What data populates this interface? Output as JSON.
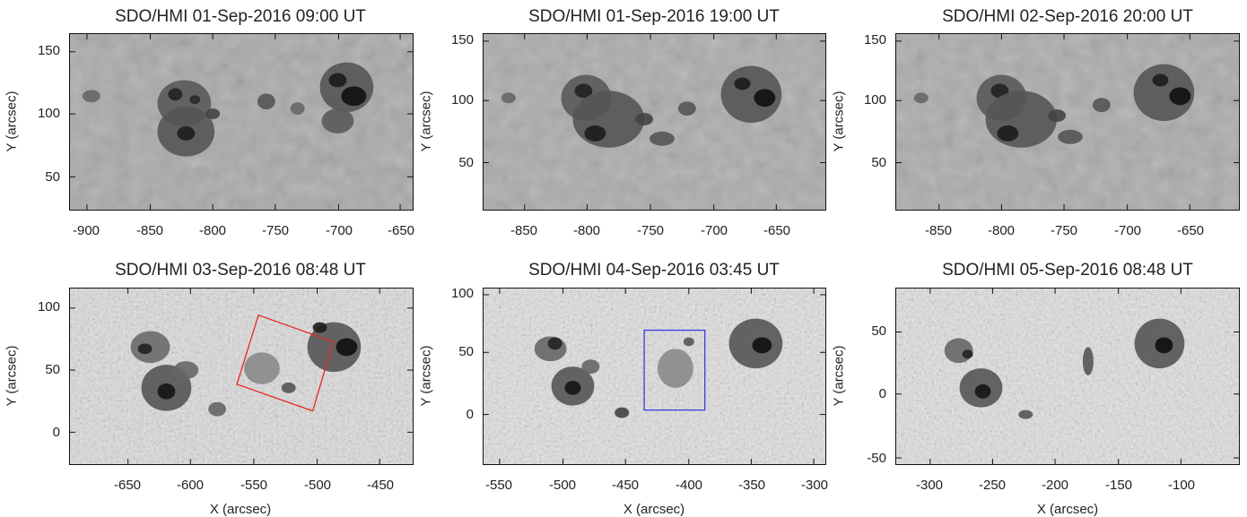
{
  "panels": [
    {
      "title": "SDO/HMI 01-Sep-2016 09:00 UT",
      "ylabel": "Y (arcsec)",
      "xlabel": "",
      "xticks": [
        "-900",
        "-850",
        "-800",
        "-750",
        "-700",
        "-650"
      ],
      "yticks": [
        "150",
        "100",
        "50"
      ],
      "overlay": null
    },
    {
      "title": "SDO/HMI 01-Sep-2016 19:00 UT",
      "ylabel": "Y (arcsec)",
      "xlabel": "",
      "xticks": [
        "-850",
        "-800",
        "-750",
        "-700",
        "-650"
      ],
      "yticks": [
        "150",
        "100",
        "50"
      ],
      "overlay": null
    },
    {
      "title": "SDO/HMI 02-Sep-2016 20:00 UT",
      "ylabel": "Y (arcsec)",
      "xlabel": "",
      "xticks": [
        "-850",
        "-800",
        "-750",
        "-700",
        "-650"
      ],
      "yticks": [
        "150",
        "100",
        "50"
      ],
      "overlay": null
    },
    {
      "title": "SDO/HMI 03-Sep-2016 08:48 UT",
      "ylabel": "Y (arcsec)",
      "xlabel": "X (arcsec)",
      "xticks": [
        "-650",
        "-600",
        "-550",
        "-500",
        "-450"
      ],
      "yticks": [
        "100",
        "50",
        "0"
      ],
      "overlay": {
        "shape": "rotated rectangle",
        "color": "#e8281e"
      }
    },
    {
      "title": "SDO/HMI 04-Sep-2016 03:45 UT",
      "ylabel": "Y (arcsec)",
      "xlabel": "X (arcsec)",
      "xticks": [
        "-550",
        "-500",
        "-450",
        "-400",
        "-350",
        "-300"
      ],
      "yticks": [
        "100",
        "50",
        "0"
      ],
      "overlay": {
        "shape": "rectangle",
        "color": "#3a3ae0"
      }
    },
    {
      "title": "SDO/HMI 05-Sep-2016 08:48 UT",
      "ylabel": "Y (arcsec)",
      "xlabel": "X (arcsec)",
      "xticks": [
        "-300",
        "-250",
        "-200",
        "-150",
        "-100"
      ],
      "yticks": [
        "50",
        "0",
        "-50"
      ],
      "overlay": null
    }
  ]
}
